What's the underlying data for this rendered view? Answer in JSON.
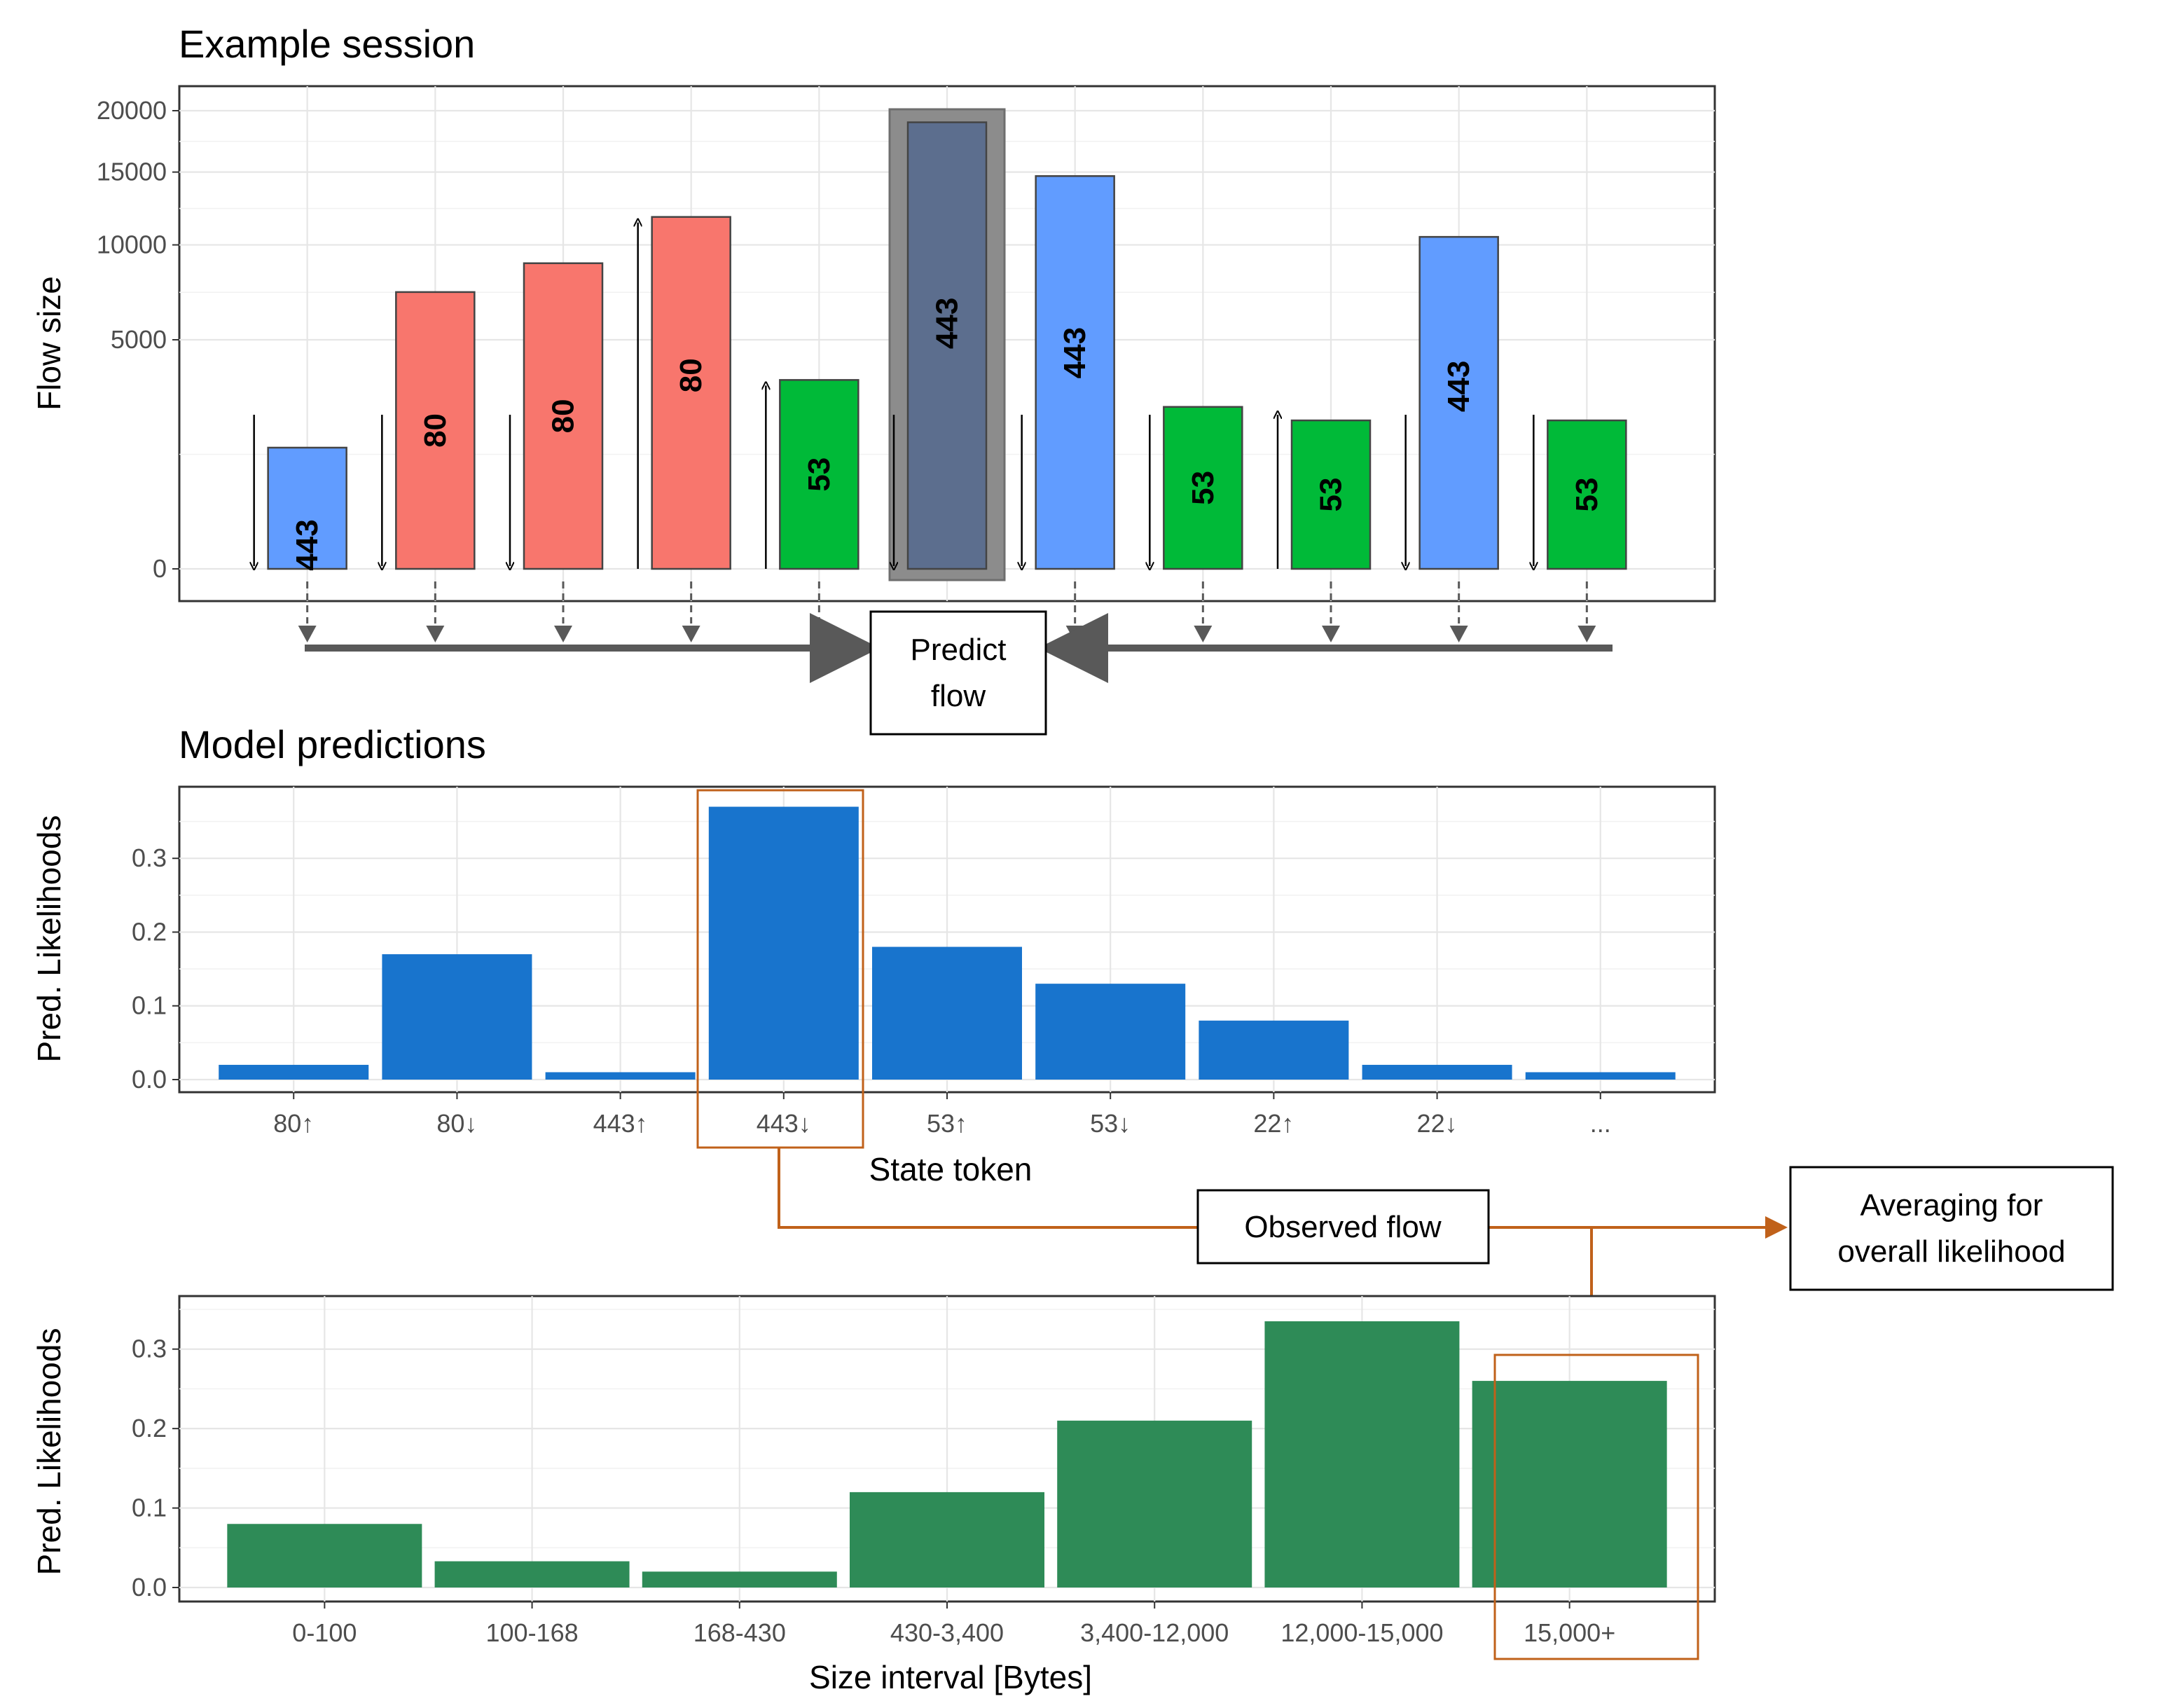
{
  "chart_data": [
    {
      "type": "bar",
      "title": "Example session",
      "xlabel": "",
      "ylabel": "Flow size",
      "yscale": "sqrt",
      "ylim": [
        0,
        20000
      ],
      "yticks": [
        0,
        5000,
        10000,
        15000,
        20000
      ],
      "bars": [
        {
          "label": "443",
          "value": 1400,
          "color": "#619CFF",
          "direction": "down",
          "predicted": false
        },
        {
          "label": "80",
          "value": 7300,
          "color": "#F8766D",
          "direction": "down",
          "predicted": false
        },
        {
          "label": "80",
          "value": 8900,
          "color": "#F8766D",
          "direction": "down",
          "predicted": false
        },
        {
          "label": "80",
          "value": 11800,
          "color": "#F8766D",
          "direction": "up",
          "predicted": false
        },
        {
          "label": "53",
          "value": 3400,
          "color": "#00BA38",
          "direction": "up",
          "predicted": false
        },
        {
          "label": "443",
          "value": 19000,
          "color": "#5C6E8E",
          "direction": "down",
          "predicted": true
        },
        {
          "label": "443",
          "value": 14700,
          "color": "#619CFF",
          "direction": "down",
          "predicted": false
        },
        {
          "label": "53",
          "value": 2500,
          "color": "#00BA38",
          "direction": "down",
          "predicted": false
        },
        {
          "label": "53",
          "value": 2100,
          "color": "#00BA38",
          "direction": "up",
          "predicted": false
        },
        {
          "label": "443",
          "value": 10500,
          "color": "#619CFF",
          "direction": "down",
          "predicted": false
        },
        {
          "label": "53",
          "value": 2100,
          "color": "#00BA38",
          "direction": "down",
          "predicted": false
        }
      ],
      "annotation": "Predict flow",
      "predicted_highlight_color": "#8C8C8C"
    },
    {
      "type": "bar",
      "title": "Model predictions",
      "xlabel": "State token",
      "ylabel": "Pred. Likelihoods",
      "ylim": [
        0,
        0.38
      ],
      "yticks": [
        0.0,
        0.1,
        0.2,
        0.3
      ],
      "ytick_labels": [
        "0.0",
        "0.1",
        "0.2",
        "0.3"
      ],
      "categories": [
        "80↑",
        "80↓",
        "443↑",
        "443↓",
        "53↑",
        "53↓",
        "22↑",
        "22↓",
        "..."
      ],
      "values": [
        0.02,
        0.17,
        0.01,
        0.37,
        0.18,
        0.13,
        0.08,
        0.02,
        0.01
      ],
      "color": "#1874CD",
      "highlight": "443↓",
      "highlight_color": "#C0611A"
    },
    {
      "type": "bar",
      "title": "",
      "xlabel": "Size interval [Bytes]",
      "ylabel": "Pred. Likelihoods",
      "ylim": [
        0,
        0.35
      ],
      "yticks": [
        0.0,
        0.1,
        0.2,
        0.3
      ],
      "ytick_labels": [
        "0.0",
        "0.1",
        "0.2",
        "0.3"
      ],
      "categories": [
        "0-100",
        "100-168",
        "168-430",
        "430-3,400",
        "3,400-12,000",
        "12,000-15,000",
        "15,000+"
      ],
      "values": [
        0.08,
        0.033,
        0.02,
        0.12,
        0.21,
        0.335,
        0.26
      ],
      "color": "#2E8B57",
      "highlight": "15,000+",
      "highlight_color": "#C0611A"
    }
  ],
  "annotations": {
    "predict_flow": "Predict flow",
    "observed_flow": "Observed flow",
    "averaging": "Averaging for overall likelihood",
    "arrow_color": "#595959",
    "connector_color": "#C0611A"
  }
}
